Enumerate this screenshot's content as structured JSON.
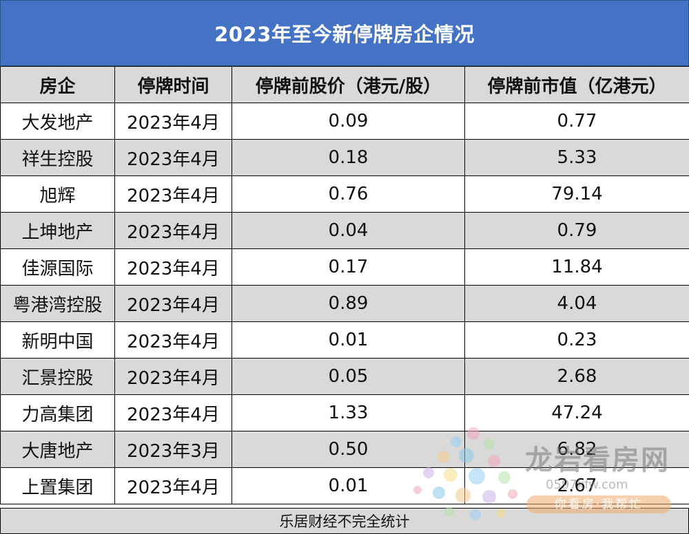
{
  "title": "2023年至今新停牌房企情况",
  "headers": [
    "房企",
    "停牌时间",
    "停牌前股价（港元/股）",
    "停牌前市值（亿港元）"
  ],
  "rows": [
    [
      "大发地产",
      "2023年4月",
      "0.09",
      "0.77"
    ],
    [
      "祥生控股",
      "2023年4月",
      "0.18",
      "5.33"
    ],
    [
      "旭辉",
      "2023年4月",
      "0.76",
      "79.14"
    ],
    [
      "上坤地产",
      "2023年4月",
      "0.04",
      "0.79"
    ],
    [
      "佳源国际",
      "2023年4月",
      "0.17",
      "11.84"
    ],
    [
      "粤港湾控股",
      "2023年4月",
      "0.89",
      "4.04"
    ],
    [
      "新明中国",
      "2023年4月",
      "0.01",
      "0.23"
    ],
    [
      "汇景控股",
      "2023年4月",
      "0.05",
      "2.68"
    ],
    [
      "力高集团",
      "2023年4月",
      "1.33",
      "47.24"
    ],
    [
      "大唐地产",
      "2023年3月",
      "0.50",
      "6.82"
    ],
    [
      "上置集团",
      "2023年4月",
      "0.01",
      "2.67"
    ]
  ],
  "footer": "乐居财经不完全统计",
  "watermark": {
    "brand": "龙岩看房网",
    "url": "0597kfw.com",
    "slogan": "你看房·我帮忙"
  },
  "colors": {
    "title_bg": "#4472c4",
    "header_bg": "#d9d9d9",
    "stripe_bg": "#d9d9d9"
  }
}
